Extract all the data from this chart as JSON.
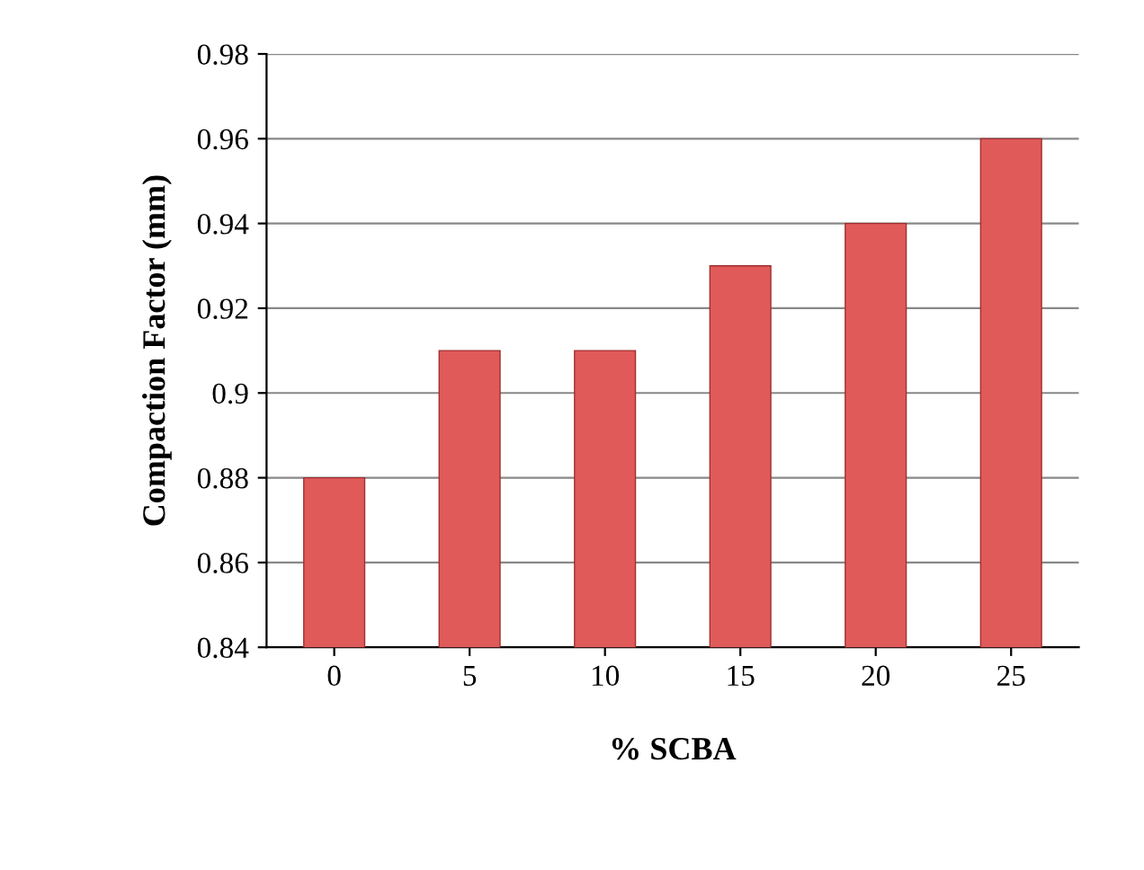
{
  "chart_data": {
    "type": "bar",
    "xlabel": "% SCBA",
    "ylabel": "Compaction Factor (mm)",
    "categories": [
      "0",
      "5",
      "10",
      "15",
      "20",
      "25"
    ],
    "values": [
      0.88,
      0.91,
      0.91,
      0.93,
      0.94,
      0.96
    ],
    "color": "#e05a5a",
    "ylim": [
      0.84,
      0.98
    ],
    "yticks": [
      {
        "value": 0.84,
        "label": "0.84"
      },
      {
        "value": 0.86,
        "label": "0.86"
      },
      {
        "value": 0.88,
        "label": "0.88"
      },
      {
        "value": 0.9,
        "label": "0.9"
      },
      {
        "value": 0.92,
        "label": "0.92"
      },
      {
        "value": 0.94,
        "label": "0.94"
      },
      {
        "value": 0.96,
        "label": "0.96"
      },
      {
        "value": 0.98,
        "label": "0.98"
      }
    ],
    "grid": "y"
  }
}
